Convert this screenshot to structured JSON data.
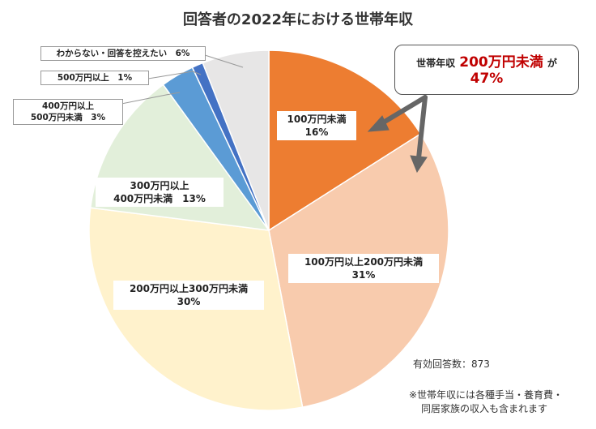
{
  "chart_data": {
    "type": "pie",
    "title": "回答者の2022年における世帯年収",
    "slices": [
      {
        "label": "100万円未満",
        "value": 16,
        "pct_label": "16%",
        "color": "#ED7D31"
      },
      {
        "label": "100万円以上200万円未満",
        "value": 31,
        "pct_label": "31%",
        "color": "#F8CBAD"
      },
      {
        "label": "200万円以上300万円未満",
        "value": 30,
        "pct_label": "30%",
        "color": "#FFF2CC"
      },
      {
        "label": "300万円以上\n400万円未満",
        "value": 13,
        "pct_label": "13%",
        "color": "#E2EFDA"
      },
      {
        "label": "400万円以上\n500万円未満",
        "value": 3,
        "pct_label": "3%",
        "color": "#5B9BD5"
      },
      {
        "label": "500万円以上",
        "value": 1,
        "pct_label": "1%",
        "color": "#4472C4"
      },
      {
        "label": "わからない・回答を控えたい",
        "value": 6,
        "pct_label": "6%",
        "color": "#E7E6E6"
      }
    ],
    "start": "top",
    "direction": "clockwise"
  },
  "callout": {
    "prefix": "世帯年収",
    "highlight": "200万円未満",
    "suffix": "が",
    "value": "47%"
  },
  "notes": {
    "responses": "有効回答数：873",
    "footnote_1": "※世帯年収には各種手当・養育費・",
    "footnote_2": "同居家族の収入も含まれます"
  }
}
